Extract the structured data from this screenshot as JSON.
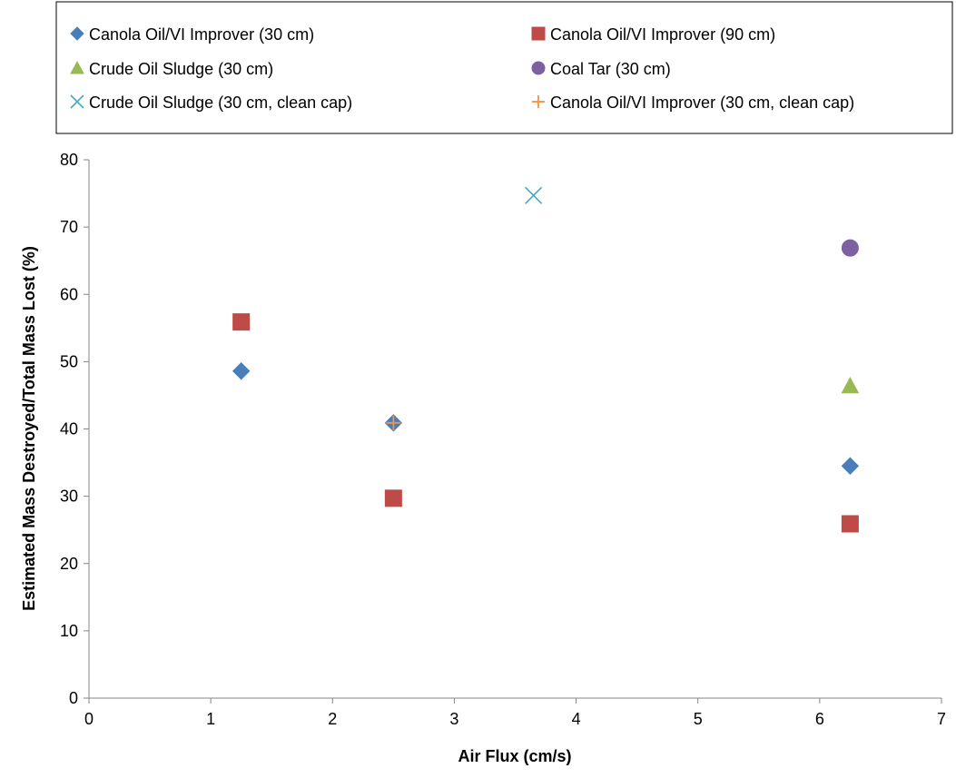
{
  "chart_data": {
    "type": "scatter",
    "title": "",
    "xlabel": "Air Flux (cm/s)",
    "ylabel": "Estimated Mass Destroyed/Total Mass Lost (%)",
    "xlim": [
      0,
      7
    ],
    "ylim": [
      0,
      80
    ],
    "x_ticks": [
      0,
      1,
      2,
      3,
      4,
      5,
      6,
      7
    ],
    "y_ticks": [
      0,
      10,
      20,
      30,
      40,
      50,
      60,
      70,
      80
    ],
    "grid": false,
    "legend_position": "top",
    "series": [
      {
        "name": "Canola Oil/VI Improver (30 cm)",
        "marker": "diamond",
        "color": "#4a7ebb",
        "points": [
          {
            "x": 1.25,
            "y": 48.6
          },
          {
            "x": 2.5,
            "y": 40.9
          },
          {
            "x": 6.25,
            "y": 34.5
          }
        ]
      },
      {
        "name": "Canola Oil/VI Improver (90 cm)",
        "marker": "square",
        "color": "#be4b48",
        "points": [
          {
            "x": 1.25,
            "y": 55.9
          },
          {
            "x": 2.5,
            "y": 29.7
          },
          {
            "x": 6.25,
            "y": 25.9
          }
        ]
      },
      {
        "name": "Crude Oil Sludge (30 cm)",
        "marker": "triangle",
        "color": "#98b954",
        "points": [
          {
            "x": 6.25,
            "y": 46.4
          }
        ]
      },
      {
        "name": "Coal Tar (30 cm)",
        "marker": "circle",
        "color": "#7d60a0",
        "points": [
          {
            "x": 6.25,
            "y": 66.9
          }
        ]
      },
      {
        "name": "Crude Oil Sludge (30 cm, clean cap)",
        "marker": "x",
        "color": "#46aac5",
        "points": [
          {
            "x": 3.65,
            "y": 74.7
          }
        ]
      },
      {
        "name": "Canola Oil/VI Improver (30 cm, clean cap)",
        "marker": "plus",
        "color": "#f69240",
        "points": [
          {
            "x": 2.5,
            "y": 40.9
          }
        ]
      }
    ]
  }
}
